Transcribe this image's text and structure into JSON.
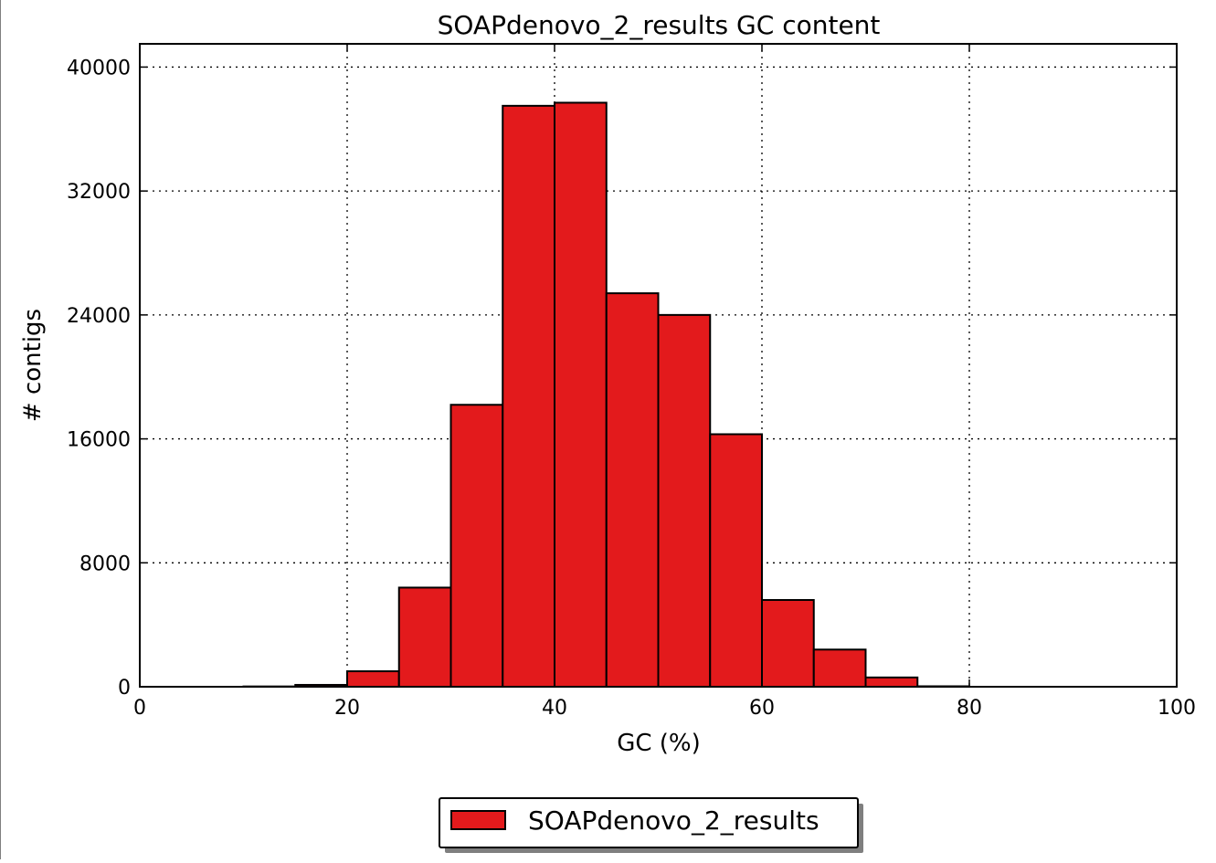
{
  "chart_data": {
    "type": "bar",
    "title": "SOAPdenovo_2_results GC content",
    "xlabel": "GC (%)",
    "ylabel": "# contigs",
    "xlim": [
      0,
      100
    ],
    "ylim": [
      0,
      41500
    ],
    "x_ticks": [
      0,
      20,
      40,
      60,
      80,
      100
    ],
    "y_ticks": [
      0,
      8000,
      16000,
      24000,
      32000,
      40000
    ],
    "grid": true,
    "legend_position": "bottom-center",
    "bar_color": "#e31a1c",
    "edge_color": "#000000",
    "series": [
      {
        "name": "SOAPdenovo_2_results",
        "bins": [
          [
            0,
            5
          ],
          [
            5,
            10
          ],
          [
            10,
            15
          ],
          [
            15,
            20
          ],
          [
            20,
            25
          ],
          [
            25,
            30
          ],
          [
            30,
            35
          ],
          [
            35,
            40
          ],
          [
            40,
            45
          ],
          [
            45,
            50
          ],
          [
            50,
            55
          ],
          [
            55,
            60
          ],
          [
            60,
            65
          ],
          [
            65,
            70
          ],
          [
            70,
            75
          ],
          [
            75,
            80
          ],
          [
            80,
            85
          ],
          [
            85,
            90
          ],
          [
            90,
            95
          ],
          [
            95,
            100
          ]
        ],
        "values": [
          0,
          0,
          20,
          120,
          1000,
          6400,
          18200,
          37500,
          37700,
          25400,
          24000,
          16300,
          5600,
          2400,
          600,
          30,
          0,
          0,
          0,
          0
        ]
      }
    ]
  }
}
